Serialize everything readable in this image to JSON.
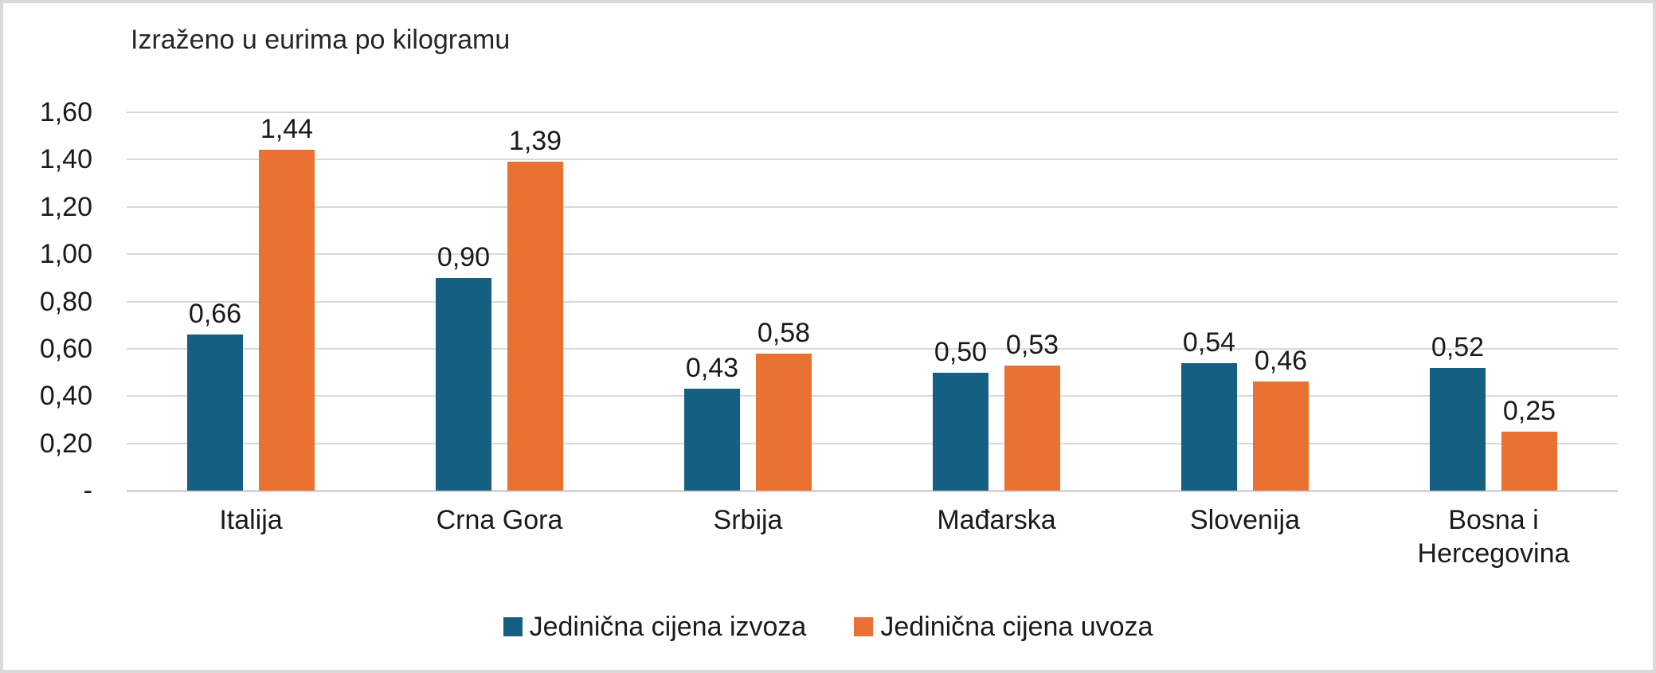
{
  "chart_data": {
    "type": "bar",
    "title": "Izraženo u eurima po kilogramu",
    "categories": [
      "Italija",
      "Crna Gora",
      "Srbija",
      "Mađarska",
      "Slovenija",
      "Bosna i Hercegovina"
    ],
    "series": [
      {
        "name": "Jedinična cijena izvoza",
        "color": "#156082",
        "values": [
          0.66,
          0.9,
          0.43,
          0.5,
          0.54,
          0.52
        ],
        "value_labels": [
          "0,66",
          "0,90",
          "0,43",
          "0,50",
          "0,54",
          "0,52"
        ]
      },
      {
        "name": "Jedinična cijena uvoza",
        "color": "#E97132",
        "values": [
          1.44,
          1.39,
          0.58,
          0.53,
          0.46,
          0.25
        ],
        "value_labels": [
          "1,44",
          "1,39",
          "0,58",
          "0,53",
          "0,46",
          "0,25"
        ]
      }
    ],
    "xlabel": "",
    "ylabel": "",
    "ylim": [
      0,
      1.6
    ],
    "y_ticks": [
      {
        "value": 0.0,
        "label": "-"
      },
      {
        "value": 0.2,
        "label": "0,20"
      },
      {
        "value": 0.4,
        "label": "0,40"
      },
      {
        "value": 0.6,
        "label": "0,60"
      },
      {
        "value": 0.8,
        "label": "0,80"
      },
      {
        "value": 1.0,
        "label": "1,00"
      },
      {
        "value": 1.2,
        "label": "1,20"
      },
      {
        "value": 1.4,
        "label": "1,40"
      },
      {
        "value": 1.6,
        "label": "1,60"
      }
    ],
    "grid": true,
    "legend_position": "bottom",
    "number_format": "comma-decimal",
    "colors": {
      "gridline": "#D9D9D9",
      "axis_line": "#D6D6D6",
      "frame_border": "#D9D9D9",
      "background": "#FFFFFF",
      "text": "#1A1A1A"
    }
  }
}
